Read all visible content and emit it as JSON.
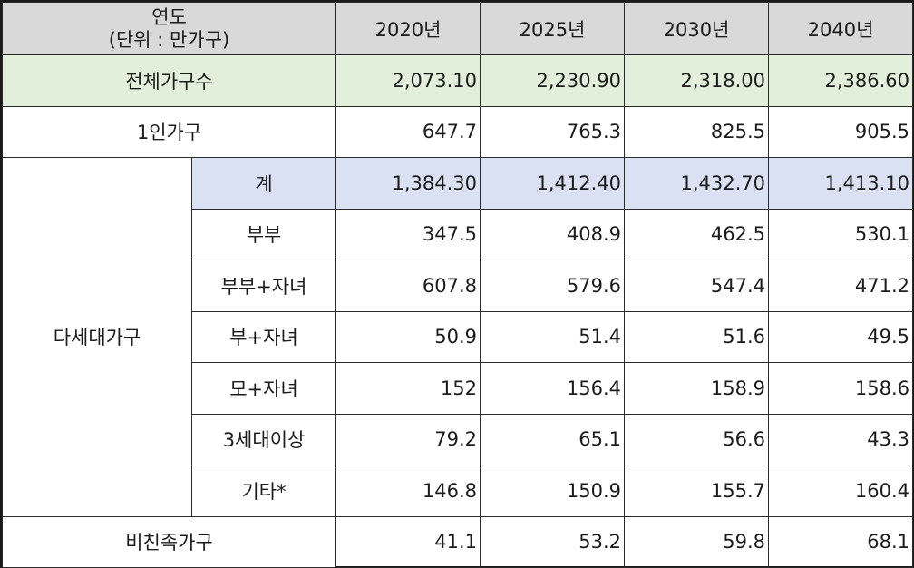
{
  "table": {
    "header": {
      "corner_line1": "연도",
      "corner_line2": "(단위 : 만가구)",
      "years": [
        "2020년",
        "2025년",
        "2030년",
        "2040년"
      ]
    },
    "rows": {
      "total": {
        "label": "전체가구수",
        "values": [
          "2,073.10",
          "2,230.90",
          "2,318.00",
          "2,386.60"
        ]
      },
      "single": {
        "label": "1인가구",
        "values": [
          "647.7",
          "765.3",
          "825.5",
          "905.5"
        ]
      },
      "multi_group_label": "다세대가구",
      "multi": [
        {
          "label": "계",
          "values": [
            "1,384.30",
            "1,412.40",
            "1,432.70",
            "1,413.10"
          ]
        },
        {
          "label": "부부",
          "values": [
            "347.5",
            "408.9",
            "462.5",
            "530.1"
          ]
        },
        {
          "label": "부부+자녀",
          "values": [
            "607.8",
            "579.6",
            "547.4",
            "471.2"
          ]
        },
        {
          "label": "부+자녀",
          "values": [
            "50.9",
            "51.4",
            "51.6",
            "49.5"
          ]
        },
        {
          "label": "모+자녀",
          "values": [
            "152",
            "156.4",
            "158.9",
            "158.6"
          ]
        },
        {
          "label": "3세대이상",
          "values": [
            "79.2",
            "65.1",
            "56.6",
            "43.3"
          ]
        },
        {
          "label": "기타*",
          "values": [
            "146.8",
            "150.9",
            "155.7",
            "160.4"
          ]
        }
      ],
      "non_family": {
        "label": "비친족가구",
        "values": [
          "41.1",
          "53.2",
          "59.8",
          "68.1"
        ]
      }
    }
  }
}
